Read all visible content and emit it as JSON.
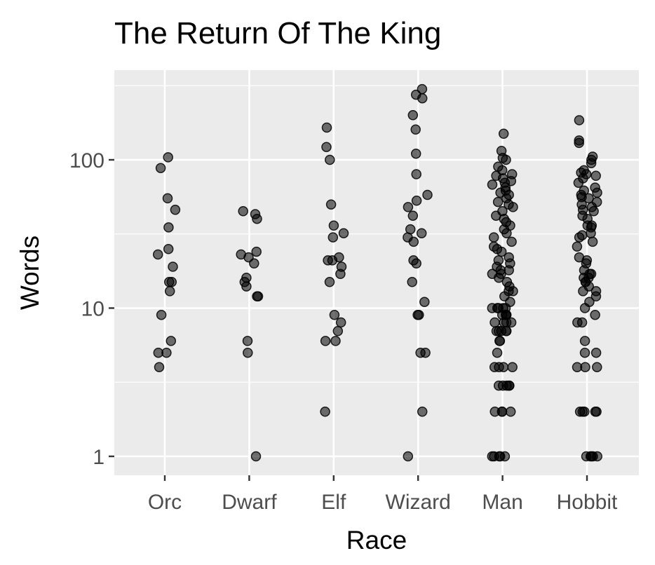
{
  "chart_data": {
    "type": "scatter",
    "title": "The Return Of The King",
    "xlabel": "Race",
    "ylabel": "Words",
    "yscale": "log10",
    "ylim": [
      0.75,
      400
    ],
    "yticks": [
      1,
      10,
      100
    ],
    "ytick_labels": [
      "1",
      "10",
      "100"
    ],
    "grid": true,
    "background_color": "#ebebeb",
    "point_color": "#000000",
    "categories": [
      "Orc",
      "Dwarf",
      "Elf",
      "Wizard",
      "Man",
      "Hobbit"
    ],
    "series": [
      {
        "category": "Orc",
        "values": [
          104,
          88,
          55,
          46,
          35,
          25,
          23,
          19,
          15,
          15,
          13,
          9,
          6,
          5,
          5,
          4
        ]
      },
      {
        "category": "Dwarf",
        "values": [
          45,
          43,
          40,
          24,
          23,
          22,
          20,
          16,
          15,
          14,
          12,
          12,
          6,
          5,
          1
        ]
      },
      {
        "category": "Elf",
        "values": [
          165,
          122,
          100,
          50,
          36,
          32,
          30,
          22,
          21,
          21,
          19,
          17,
          15,
          9,
          8,
          7,
          6,
          6,
          2
        ]
      },
      {
        "category": "Wizard",
        "values": [
          300,
          275,
          260,
          200,
          160,
          110,
          80,
          58,
          53,
          48,
          42,
          34,
          32,
          30,
          28,
          21,
          20,
          15,
          11,
          9,
          9,
          5,
          5,
          2,
          1
        ]
      },
      {
        "category": "Man",
        "values": [
          150,
          115,
          103,
          100,
          90,
          85,
          80,
          78,
          75,
          72,
          70,
          68,
          65,
          62,
          60,
          58,
          55,
          52,
          50,
          48,
          45,
          42,
          40,
          38,
          36,
          34,
          32,
          30,
          28,
          26,
          25,
          24,
          22,
          21,
          20,
          19,
          18,
          18,
          17,
          17,
          16,
          15,
          14,
          13,
          13,
          12,
          11,
          10,
          10,
          10,
          10,
          10,
          9,
          9,
          9,
          9,
          8,
          8,
          8,
          8,
          7,
          7,
          7,
          7,
          7,
          6,
          6,
          5,
          4,
          4,
          4,
          4,
          3,
          3,
          3,
          3,
          3,
          2,
          2,
          2,
          2,
          1,
          1,
          1,
          1,
          1
        ]
      },
      {
        "category": "Hobbit",
        "values": [
          185,
          135,
          130,
          105,
          100,
          95,
          85,
          82,
          80,
          78,
          75,
          70,
          65,
          62,
          60,
          58,
          56,
          55,
          52,
          50,
          48,
          46,
          45,
          42,
          40,
          36,
          36,
          35,
          32,
          31,
          30,
          28,
          26,
          22,
          21,
          20,
          18,
          17,
          17,
          16,
          16,
          15,
          15,
          14,
          13,
          13,
          12,
          11,
          10,
          9,
          8,
          8,
          6,
          5,
          5,
          4,
          4,
          4,
          2,
          2,
          2,
          2,
          2,
          1,
          1,
          1,
          1,
          1
        ]
      }
    ]
  }
}
